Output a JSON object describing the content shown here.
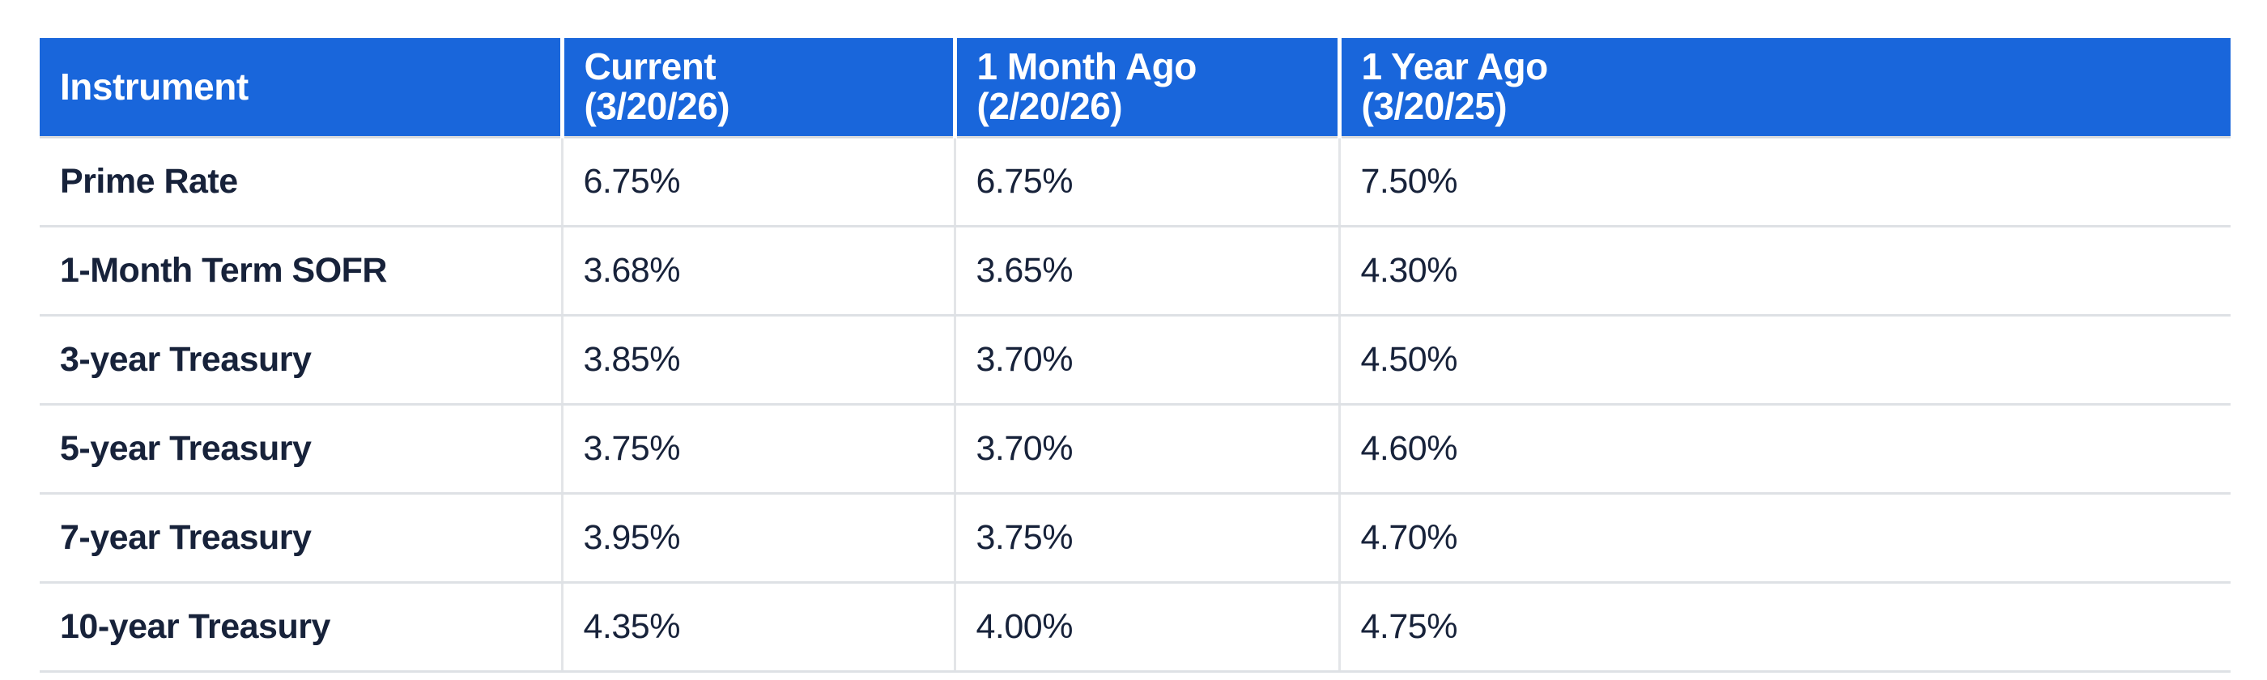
{
  "colors": {
    "header_bg": "#1966db",
    "header_text": "#ffffff",
    "body_text": "#17223a",
    "row_divider": "#dee1e5",
    "column_divider": "#e3e5e8",
    "header_column_gap": "#ffffff"
  },
  "header": {
    "columns": [
      {
        "line1": "Instrument",
        "line2": ""
      },
      {
        "line1": "Current",
        "line2": "(3/20/26)"
      },
      {
        "line1": "1 Month Ago",
        "line2": "(2/20/26)"
      },
      {
        "line1": "1 Year Ago",
        "line2": "(3/20/25)"
      }
    ]
  },
  "chart_data": {
    "type": "table",
    "columns": [
      "Instrument",
      "Current (3/20/26)",
      "1 Month Ago (2/20/26)",
      "1 Year Ago (3/20/25)"
    ],
    "rows": [
      [
        "Prime Rate",
        "6.75%",
        "6.75%",
        "7.50%"
      ],
      [
        "1-Month Term SOFR",
        "3.68%",
        "3.65%",
        "4.30%"
      ],
      [
        "3-year Treasury",
        "3.85%",
        "3.70%",
        "4.50%"
      ],
      [
        "5-year Treasury",
        "3.75%",
        "3.70%",
        "4.60%"
      ],
      [
        "7-year Treasury",
        "3.95%",
        "3.75%",
        "4.70%"
      ],
      [
        "10-year Treasury",
        "4.35%",
        "4.00%",
        "4.75%"
      ]
    ],
    "categories": [
      "Prime Rate",
      "1-Month Term SOFR",
      "3-year Treasury",
      "5-year Treasury",
      "7-year Treasury",
      "10-year Treasury"
    ],
    "series": [
      {
        "name": "Current (3/20/26)",
        "values": [
          6.75,
          3.68,
          3.85,
          3.75,
          3.95,
          4.35
        ]
      },
      {
        "name": "1 Month Ago (2/20/26)",
        "values": [
          6.75,
          3.65,
          3.7,
          3.7,
          3.75,
          4.0
        ]
      },
      {
        "name": "1 Year Ago (3/20/25)",
        "values": [
          7.5,
          4.3,
          4.5,
          4.6,
          4.7,
          4.75
        ]
      }
    ],
    "units": "percent",
    "legend_position": "none",
    "grid": "row-and-column-dividers"
  }
}
